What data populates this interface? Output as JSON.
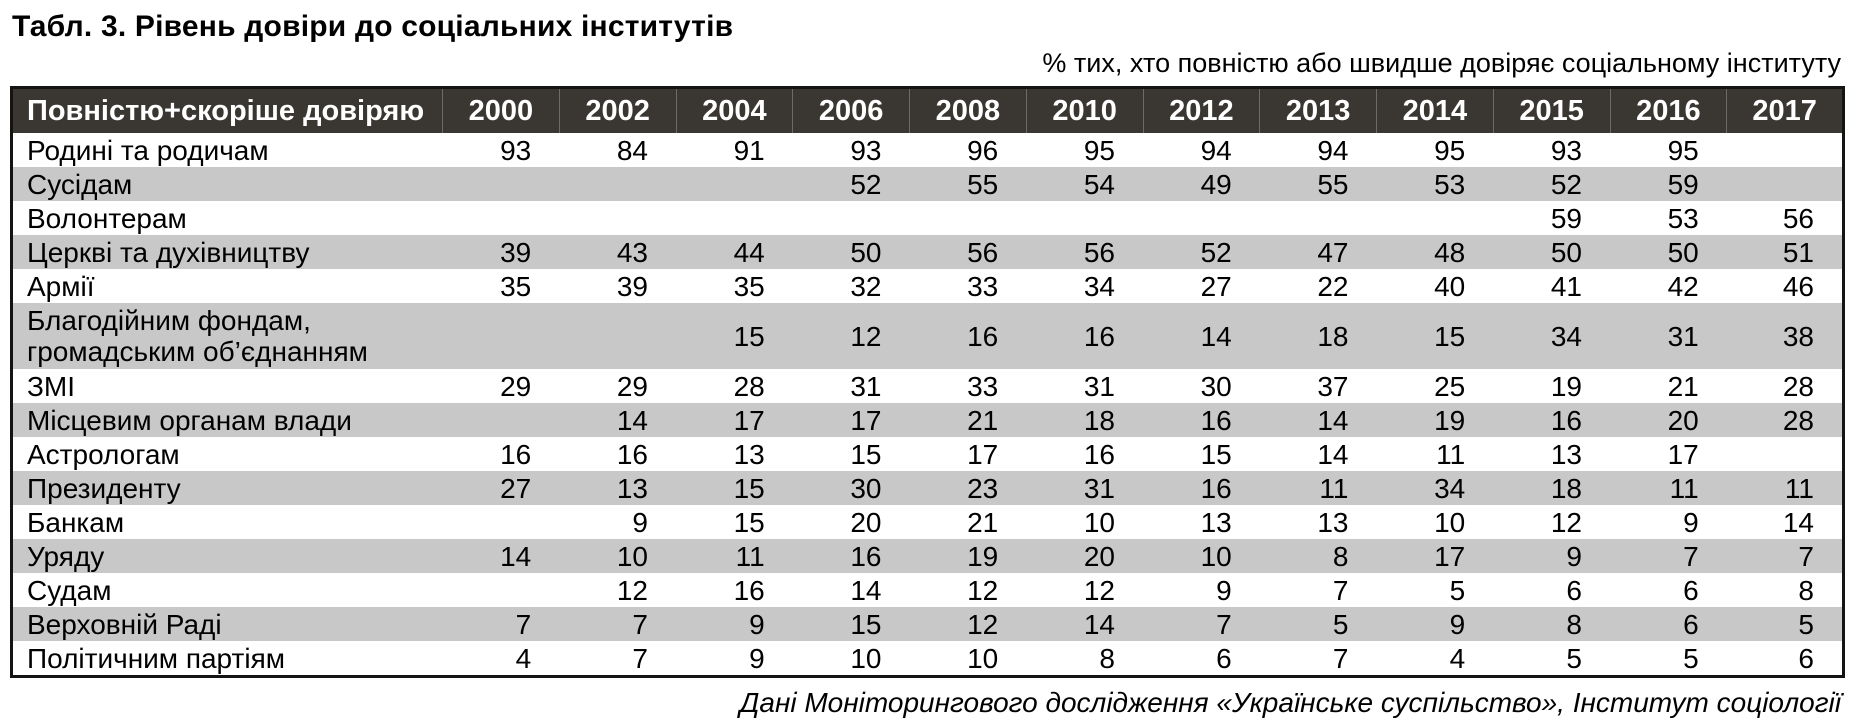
{
  "title": "Табл. 3. Рівень довіри до соціальних інститутів",
  "subtitle": "% тих, хто повністю або швидше довіряє соціальному інституту",
  "footer": "Дані Моніторингового дослідження «Українське суспільство», Інститут соціології",
  "colors": {
    "header_bg": "#3a3632",
    "header_text": "#ffffff",
    "row_alt_bg": "#c8c8c8",
    "border": "#161412"
  },
  "chart_data": {
    "type": "table",
    "header_label": "Повністю+скоріше довіряю",
    "years": [
      "2000",
      "2002",
      "2004",
      "2006",
      "2008",
      "2010",
      "2012",
      "2013",
      "2014",
      "2015",
      "2016",
      "2017"
    ],
    "rows": [
      {
        "label": "Родині та родичам",
        "values": [
          "93",
          "84",
          "91",
          "93",
          "96",
          "95",
          "94",
          "94",
          "95",
          "93",
          "95",
          ""
        ]
      },
      {
        "label": "Сусідам",
        "values": [
          "",
          "",
          "",
          "52",
          "55",
          "54",
          "49",
          "55",
          "53",
          "52",
          "59",
          ""
        ]
      },
      {
        "label": "Волонтерам",
        "values": [
          "",
          "",
          "",
          "",
          "",
          "",
          "",
          "",
          "",
          "59",
          "53",
          "56"
        ]
      },
      {
        "label": "Церкві та духівництву",
        "values": [
          "39",
          "43",
          "44",
          "50",
          "56",
          "56",
          "52",
          "47",
          "48",
          "50",
          "50",
          "51"
        ]
      },
      {
        "label": "Армії",
        "values": [
          "35",
          "39",
          "35",
          "32",
          "33",
          "34",
          "27",
          "22",
          "40",
          "41",
          "42",
          "46"
        ]
      },
      {
        "label": "Благодійним фондам,\nгромадським  об’єднанням",
        "values": [
          "",
          "",
          "15",
          "12",
          "16",
          "16",
          "14",
          "18",
          "15",
          "34",
          "31",
          "38"
        ]
      },
      {
        "label": "ЗМІ",
        "values": [
          "29",
          "29",
          "28",
          "31",
          "33",
          "31",
          "30",
          "37",
          "25",
          "19",
          "21",
          "28"
        ]
      },
      {
        "label": "Місцевим органам влади",
        "values": [
          "",
          "14",
          "17",
          "17",
          "21",
          "18",
          "16",
          "14",
          "19",
          "16",
          "20",
          "28"
        ]
      },
      {
        "label": "Астрологам",
        "values": [
          "16",
          "16",
          "13",
          "15",
          "17",
          "16",
          "15",
          "14",
          "11",
          "13",
          "17",
          ""
        ]
      },
      {
        "label": "Президенту",
        "values": [
          "27",
          "13",
          "15",
          "30",
          "23",
          "31",
          "16",
          "11",
          "34",
          "18",
          "11",
          "11"
        ]
      },
      {
        "label": "Банкам",
        "values": [
          "",
          "9",
          "15",
          "20",
          "21",
          "10",
          "13",
          "13",
          "10",
          "12",
          "9",
          "14"
        ]
      },
      {
        "label": "Уряду",
        "values": [
          "14",
          "10",
          "11",
          "16",
          "19",
          "20",
          "10",
          "8",
          "17",
          "9",
          "7",
          "7"
        ]
      },
      {
        "label": "Судам",
        "values": [
          "",
          "12",
          "16",
          "14",
          "12",
          "12",
          "9",
          "7",
          "5",
          "6",
          "6",
          "8"
        ]
      },
      {
        "label": "Верховній Раді",
        "values": [
          "7",
          "7",
          "9",
          "15",
          "12",
          "14",
          "7",
          "5",
          "9",
          "8",
          "6",
          "5"
        ]
      },
      {
        "label": "Політичним партіям",
        "values": [
          "4",
          "7",
          "9",
          "10",
          "10",
          "8",
          "6",
          "7",
          "4",
          "5",
          "5",
          "6"
        ]
      }
    ]
  }
}
